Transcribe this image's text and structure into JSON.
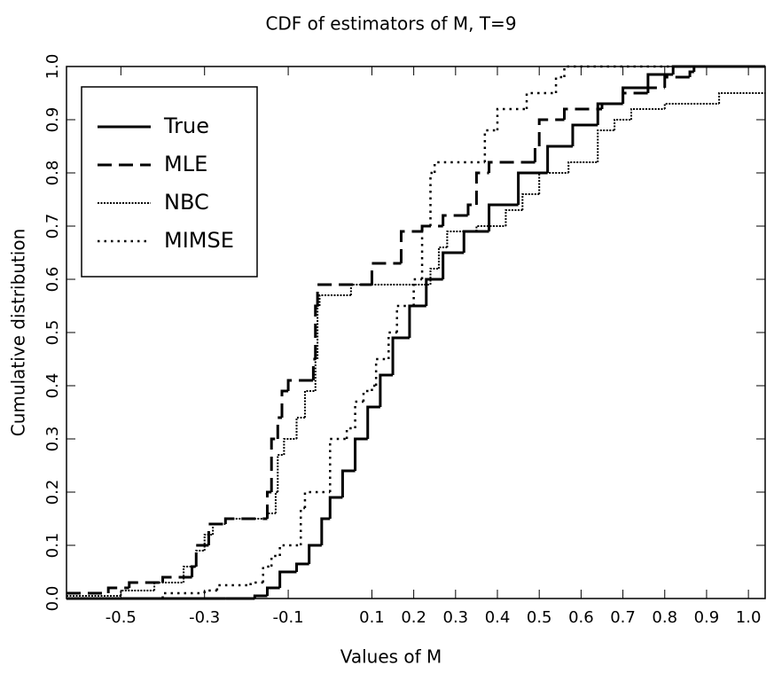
{
  "chart_data": {
    "type": "step",
    "title": "CDF of estimators of M, T=9",
    "xlabel": "Values of M",
    "ylabel": "Cumulative distribution",
    "xlim": [
      -0.63,
      1.04
    ],
    "ylim": [
      0,
      1
    ],
    "xticks": [
      -0.5,
      -0.3,
      -0.1,
      0.1,
      0.2,
      0.3,
      0.4,
      0.5,
      0.6,
      0.7,
      0.8,
      0.9,
      {
        "value": 1,
        "label": "1.0"
      }
    ],
    "yticks": [
      {
        "value": 0,
        "label": "0.0"
      },
      0.1,
      0.2,
      0.3,
      0.4,
      0.5,
      0.6,
      0.7,
      0.8,
      0.9,
      {
        "value": 1,
        "label": "1.0"
      }
    ],
    "legend": "upper-left",
    "series": [
      {
        "name": "True",
        "color": "#000000",
        "style": "solid",
        "x": [
          -0.63,
          -0.25,
          -0.18,
          -0.15,
          -0.12,
          -0.08,
          -0.05,
          -0.02,
          0.0,
          0.03,
          0.06,
          0.09,
          0.12,
          0.15,
          0.19,
          0.23,
          0.27,
          0.32,
          0.38,
          0.45,
          0.52,
          0.58,
          0.64,
          0.7,
          0.76,
          0.82
        ],
        "values": [
          0,
          0,
          0.005,
          0.02,
          0.05,
          0.065,
          0.1,
          0.15,
          0.19,
          0.24,
          0.3,
          0.36,
          0.42,
          0.49,
          0.55,
          0.6,
          0.65,
          0.69,
          0.74,
          0.8,
          0.85,
          0.89,
          0.93,
          0.96,
          0.985,
          1.0
        ]
      },
      {
        "name": "MLE",
        "color": "#000000",
        "style": "dashed",
        "x": [
          -0.63,
          -0.53,
          -0.48,
          -0.4,
          -0.33,
          -0.32,
          -0.29,
          -0.25,
          -0.15,
          -0.14,
          -0.125,
          -0.115,
          -0.1,
          -0.04,
          -0.035,
          -0.03,
          0.1,
          0.17,
          0.22,
          0.27,
          0.33,
          0.35,
          0.38,
          0.49,
          0.5,
          0.56,
          0.65,
          0.7,
          0.76,
          0.8,
          0.86,
          0.87
        ],
        "values": [
          0.01,
          0.02,
          0.03,
          0.04,
          0.06,
          0.1,
          0.14,
          0.15,
          0.2,
          0.3,
          0.34,
          0.39,
          0.41,
          0.45,
          0.55,
          0.59,
          0.63,
          0.69,
          0.7,
          0.72,
          0.74,
          0.8,
          0.82,
          0.85,
          0.9,
          0.92,
          0.93,
          0.95,
          0.96,
          0.98,
          0.99,
          1.0
        ]
      },
      {
        "name": "NBC",
        "color": "#000000",
        "style": "dense-dot",
        "x": [
          -0.63,
          -0.5,
          -0.42,
          -0.35,
          -0.32,
          -0.3,
          -0.28,
          -0.25,
          -0.15,
          -0.13,
          -0.125,
          -0.11,
          -0.08,
          -0.06,
          -0.035,
          -0.03,
          -0.025,
          0.05,
          0.24,
          0.26,
          0.28,
          0.35,
          0.42,
          0.46,
          0.5,
          0.57,
          0.64,
          0.68,
          0.72,
          0.8,
          0.93
        ],
        "values": [
          0.005,
          0.015,
          0.03,
          0.06,
          0.09,
          0.12,
          0.14,
          0.15,
          0.16,
          0.2,
          0.27,
          0.3,
          0.34,
          0.39,
          0.45,
          0.55,
          0.57,
          0.59,
          0.62,
          0.66,
          0.69,
          0.7,
          0.73,
          0.76,
          0.8,
          0.82,
          0.88,
          0.9,
          0.92,
          0.93,
          0.95
        ]
      },
      {
        "name": "MIMSE",
        "color": "#000000",
        "style": "dot",
        "x": [
          -0.63,
          -0.4,
          -0.3,
          -0.27,
          -0.19,
          -0.16,
          -0.14,
          -0.12,
          -0.07,
          -0.06,
          0.0,
          0.04,
          0.06,
          0.08,
          0.1,
          0.11,
          0.14,
          0.16,
          0.2,
          0.22,
          0.24,
          0.25,
          0.37,
          0.4,
          0.47,
          0.54,
          0.56
        ],
        "values": [
          0,
          0.01,
          0.015,
          0.025,
          0.03,
          0.06,
          0.08,
          0.1,
          0.17,
          0.2,
          0.3,
          0.32,
          0.37,
          0.39,
          0.4,
          0.45,
          0.5,
          0.55,
          0.6,
          0.7,
          0.8,
          0.82,
          0.88,
          0.92,
          0.95,
          0.98,
          1.0
        ]
      }
    ]
  }
}
